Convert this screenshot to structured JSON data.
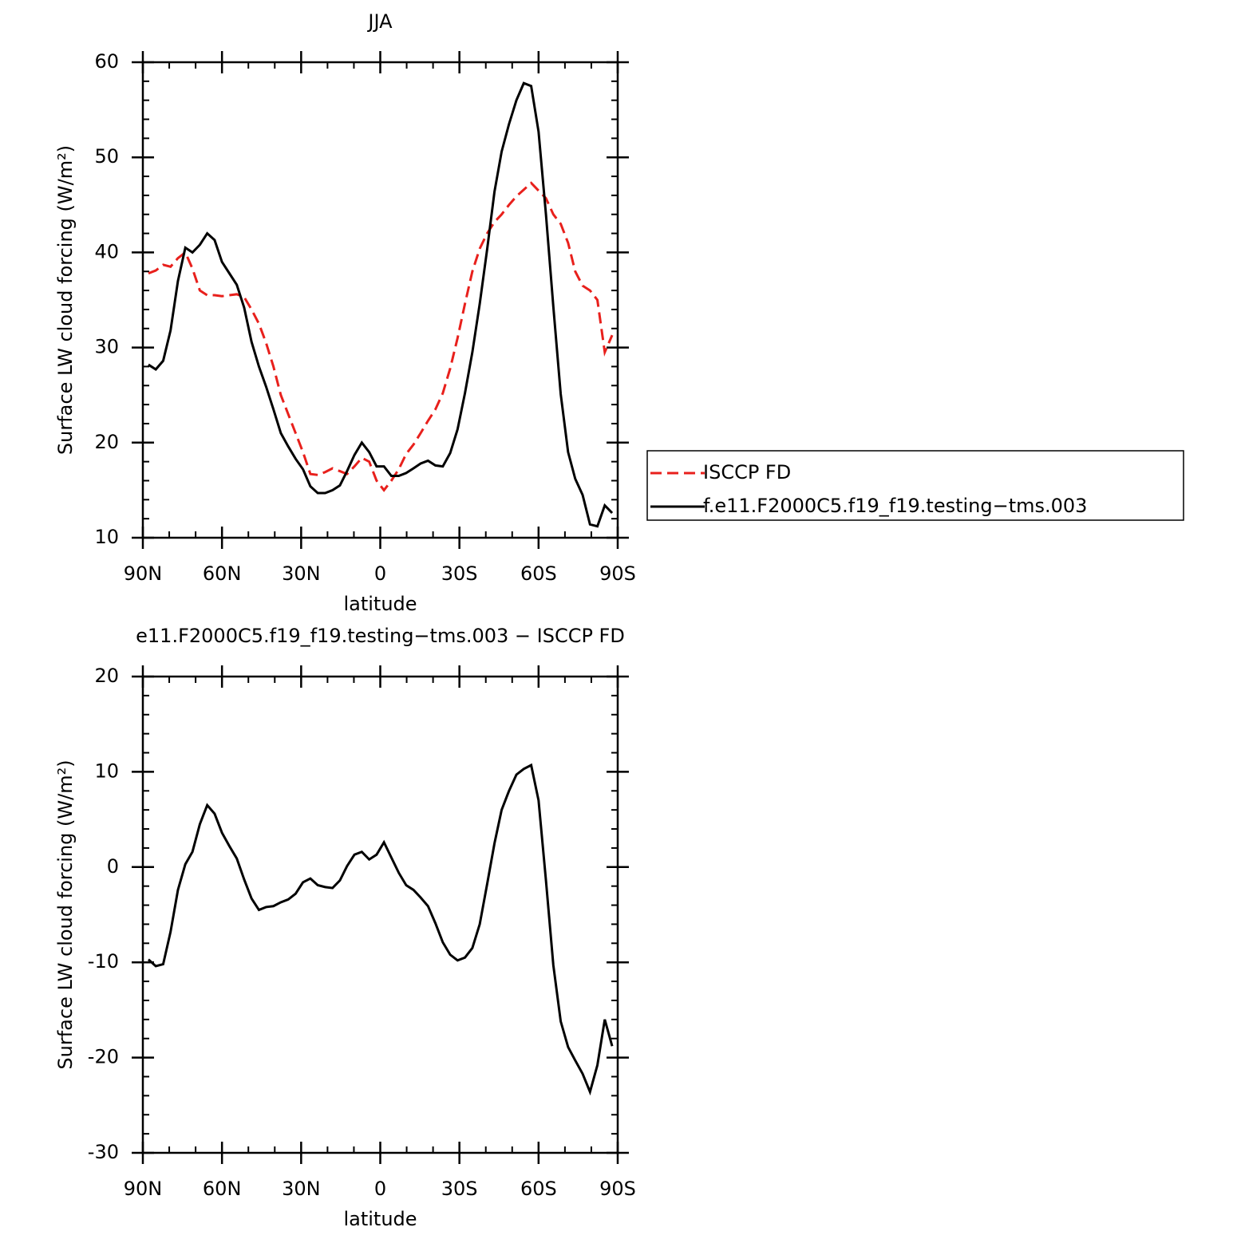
{
  "chart_data": [
    {
      "type": "line",
      "title": "JJA",
      "x_label": "latitude",
      "y_label": "Surface LW cloud forcing (W/m²)",
      "x": [
        87.9,
        85.1,
        82.3,
        79.5,
        76.7,
        73.9,
        71.2,
        68.4,
        65.6,
        62.8,
        60.0,
        57.2,
        54.4,
        51.6,
        48.8,
        46.0,
        43.3,
        40.5,
        37.7,
        34.9,
        32.1,
        29.3,
        26.5,
        23.7,
        20.9,
        18.1,
        15.3,
        12.6,
        9.8,
        7.0,
        4.2,
        1.4,
        -1.4,
        -4.2,
        -7.0,
        -9.8,
        -12.6,
        -15.3,
        -18.1,
        -20.9,
        -23.7,
        -26.5,
        -29.3,
        -32.1,
        -34.9,
        -37.7,
        -40.5,
        -43.3,
        -46.0,
        -48.8,
        -51.6,
        -54.4,
        -57.2,
        -60.0,
        -62.8,
        -65.6,
        -68.4,
        -71.2,
        -73.9,
        -76.7,
        -79.5,
        -82.3,
        -85.1,
        -87.9
      ],
      "series": [
        {
          "name": "ISCCP FD",
          "color": "#e8201c",
          "dash": true,
          "values": [
            37.8,
            38.1,
            38.7,
            38.5,
            39.4,
            40,
            38.3,
            36,
            35.5,
            35.5,
            35.4,
            35.5,
            35.6,
            35.3,
            34,
            32.5,
            30.5,
            28,
            25,
            23,
            21,
            19,
            16.7,
            16.6,
            16.9,
            17.3,
            17,
            16.7,
            17.5,
            18.4,
            18,
            16,
            15,
            16,
            17.2,
            18.8,
            19.8,
            21,
            22.3,
            23.5,
            25.2,
            27.8,
            31,
            34.6,
            38,
            40.4,
            42,
            43.2,
            44,
            45,
            45.9,
            46.6,
            47.3,
            46.5,
            45.7,
            44,
            43,
            41,
            38,
            36.5,
            36,
            35,
            29.5,
            31.3
          ]
        },
        {
          "name": "f.e11.F2000C5.f19_f19.testing−tms.003",
          "color": "#000000",
          "dash": false,
          "values": [
            28.2,
            27.7,
            28.6,
            31.8,
            37,
            40.5,
            40,
            40.8,
            42,
            41.3,
            39,
            37.8,
            36.6,
            34.2,
            30.6,
            28,
            25.9,
            23.5,
            21,
            19.6,
            18.3,
            17.2,
            15.4,
            14.7,
            14.7,
            15,
            15.5,
            17,
            18.7,
            20,
            19,
            17.5,
            17.5,
            16.5,
            16.5,
            16.8,
            17.3,
            17.8,
            18.1,
            17.6,
            17.5,
            18.9,
            21.4,
            25.2,
            29.5,
            34.6,
            40.3,
            46.4,
            50.6,
            53.5,
            56,
            57.8,
            57.5,
            52.7,
            44,
            34.3,
            25.1,
            19,
            16.2,
            14.5,
            11.4,
            11.2,
            13.4,
            12.6
          ]
        }
      ],
      "xlim": [
        90,
        -90
      ],
      "xticks": [
        {
          "value": 90,
          "label": "90N"
        },
        {
          "value": 60,
          "label": "60N"
        },
        {
          "value": 30,
          "label": "30N"
        },
        0,
        {
          "value": -30,
          "label": "30S"
        },
        {
          "value": -60,
          "label": "60S"
        },
        {
          "value": -90,
          "label": "90S"
        }
      ],
      "ylim": [
        10,
        60
      ],
      "yticks": [
        10,
        20,
        30,
        40,
        50,
        60
      ],
      "legend": "right"
    },
    {
      "type": "line",
      "title": "e11.F2000C5.f19_f19.testing−tms.003 − ISCCP FD",
      "x_label": "latitude",
      "y_label": "Surface LW cloud forcing (W/m²)",
      "x": [
        87.9,
        85.1,
        82.3,
        79.5,
        76.7,
        73.9,
        71.2,
        68.4,
        65.6,
        62.8,
        60.0,
        57.2,
        54.4,
        51.6,
        48.8,
        46.0,
        43.3,
        40.5,
        37.7,
        34.9,
        32.1,
        29.3,
        26.5,
        23.7,
        20.9,
        18.1,
        15.3,
        12.6,
        9.8,
        7.0,
        4.2,
        1.4,
        -1.4,
        -4.2,
        -7.0,
        -9.8,
        -12.6,
        -15.3,
        -18.1,
        -20.9,
        -23.7,
        -26.5,
        -29.3,
        -32.1,
        -34.9,
        -37.7,
        -40.5,
        -43.3,
        -46.0,
        -48.8,
        -51.6,
        -54.4,
        -57.2,
        -60.0,
        -62.8,
        -65.6,
        -68.4,
        -71.2,
        -73.9,
        -76.7,
        -79.5,
        -82.3,
        -85.1,
        -87.9
      ],
      "series": [
        {
          "color": "#000000",
          "dash": false,
          "values": [
            -9.7,
            -10.4,
            -10.2,
            -6.8,
            -2.4,
            0.3,
            1.6,
            4.5,
            6.5,
            5.6,
            3.6,
            2.2,
            0.9,
            -1.3,
            -3.3,
            -4.5,
            -4.2,
            -4.1,
            -3.7,
            -3.4,
            -2.8,
            -1.6,
            -1.2,
            -1.9,
            -2.1,
            -2.2,
            -1.4,
            0.1,
            1.3,
            1.6,
            0.8,
            1.3,
            2.6,
            1,
            -0.6,
            -1.9,
            -2.4,
            -3.2,
            -4.1,
            -5.9,
            -7.9,
            -9.2,
            -9.8,
            -9.5,
            -8.5,
            -6,
            -1.8,
            2.5,
            6,
            8,
            9.7,
            10.3,
            10.7,
            7,
            -1.4,
            -10.3,
            -16.2,
            -18.9,
            -20.3,
            -21.7,
            -23.6,
            -20.8,
            -16,
            -18.8
          ]
        }
      ],
      "xlim": [
        90,
        -90
      ],
      "xticks": [
        {
          "value": 90,
          "label": "90N"
        },
        {
          "value": 60,
          "label": "60N"
        },
        {
          "value": 30,
          "label": "30N"
        },
        0,
        {
          "value": -30,
          "label": "30S"
        },
        {
          "value": -60,
          "label": "60S"
        },
        {
          "value": -90,
          "label": "90S"
        }
      ],
      "ylim": [
        -30,
        20
      ],
      "yticks": [
        -30,
        -20,
        -10,
        0,
        10,
        20
      ]
    }
  ]
}
